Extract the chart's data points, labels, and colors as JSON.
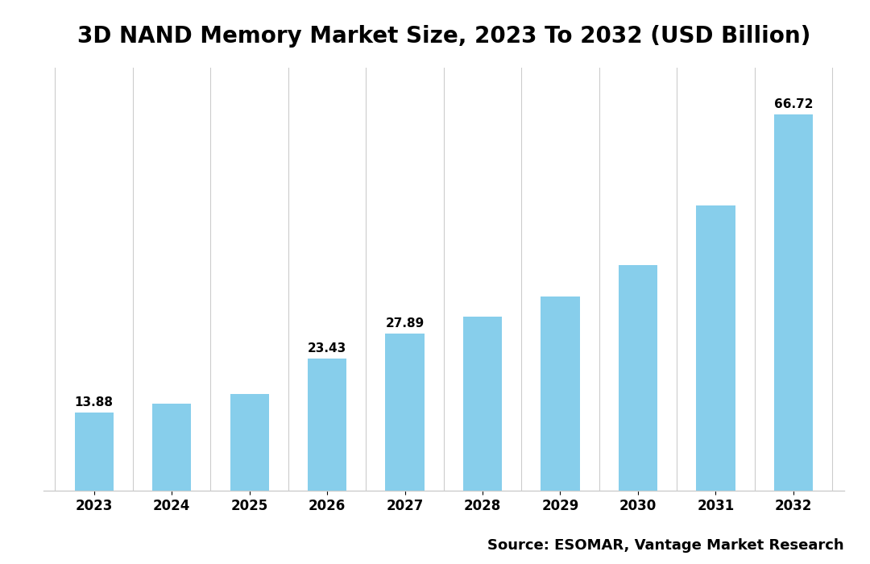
{
  "title": "3D NAND Memory Market Size, 2023 To 2032 (USD Billion)",
  "years": [
    2023,
    2024,
    2025,
    2026,
    2027,
    2028,
    2029,
    2030,
    2031,
    2032
  ],
  "values": [
    13.88,
    15.5,
    17.2,
    23.43,
    27.89,
    30.8,
    34.5,
    40.0,
    50.5,
    66.72
  ],
  "bar_color": "#87CEEB",
  "background_color": "#ffffff",
  "title_fontsize": 20,
  "tick_fontsize": 12,
  "annotation_fontsize": 11,
  "source_text": "Source: ESOMAR, Vantage Market Research",
  "source_fontsize": 13,
  "ylim": [
    0,
    75
  ],
  "show_labels": [
    true,
    false,
    false,
    true,
    true,
    false,
    false,
    false,
    false,
    true
  ],
  "grid_color": "#cccccc",
  "bar_width": 0.5
}
